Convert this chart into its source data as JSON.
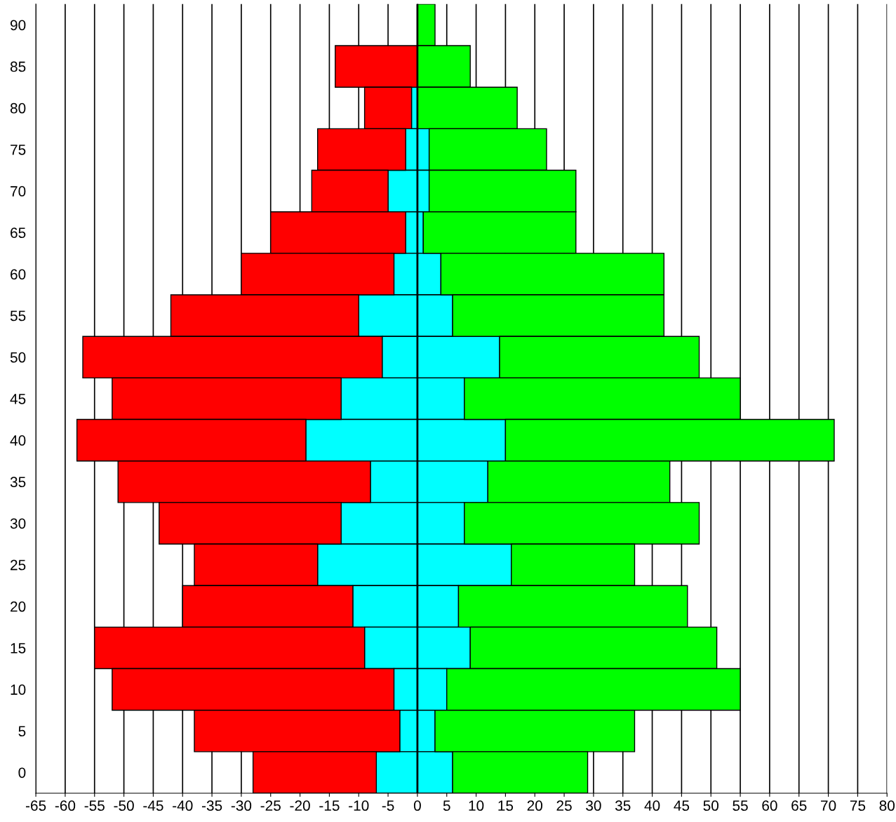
{
  "chart_data": {
    "type": "bar",
    "orientation": "horizontal",
    "stacked": true,
    "categories": [
      "90",
      "85",
      "80",
      "75",
      "70",
      "65",
      "60",
      "55",
      "50",
      "45",
      "40",
      "35",
      "30",
      "25",
      "20",
      "15",
      "10",
      "5",
      "0"
    ],
    "series": [
      {
        "color": "#00ffff",
        "values": [
          null,
          null,
          -1,
          -2,
          -5,
          -2,
          -4,
          -10,
          -6,
          -13,
          -19,
          -8,
          -13,
          -17,
          -11,
          -9,
          -4,
          -3,
          -7
        ]
      },
      {
        "color": "#ff0000",
        "values": [
          null,
          -14,
          -8,
          -15,
          -13,
          -23,
          -26,
          -32,
          -51,
          -39,
          -39,
          -43,
          -31,
          -21,
          -29,
          -46,
          -48,
          -35,
          -21
        ]
      },
      {
        "color": "#00ffff",
        "values": [
          null,
          null,
          null,
          2,
          2,
          1,
          4,
          6,
          14,
          8,
          15,
          12,
          8,
          16,
          7,
          9,
          5,
          3,
          6
        ]
      },
      {
        "color": "#00ff00",
        "values": [
          3,
          9,
          17,
          20,
          25,
          26,
          38,
          36,
          34,
          47,
          56,
          31,
          40,
          21,
          39,
          42,
          50,
          34,
          23
        ]
      }
    ],
    "xlim": [
      -65,
      80
    ],
    "xticks": [
      -65,
      -60,
      -55,
      -50,
      -45,
      -40,
      -35,
      -30,
      -25,
      -20,
      -15,
      -10,
      -5,
      0,
      5,
      10,
      15,
      20,
      25,
      30,
      35,
      40,
      45,
      50,
      55,
      60,
      65,
      70,
      75,
      80
    ],
    "grid": "x"
  }
}
